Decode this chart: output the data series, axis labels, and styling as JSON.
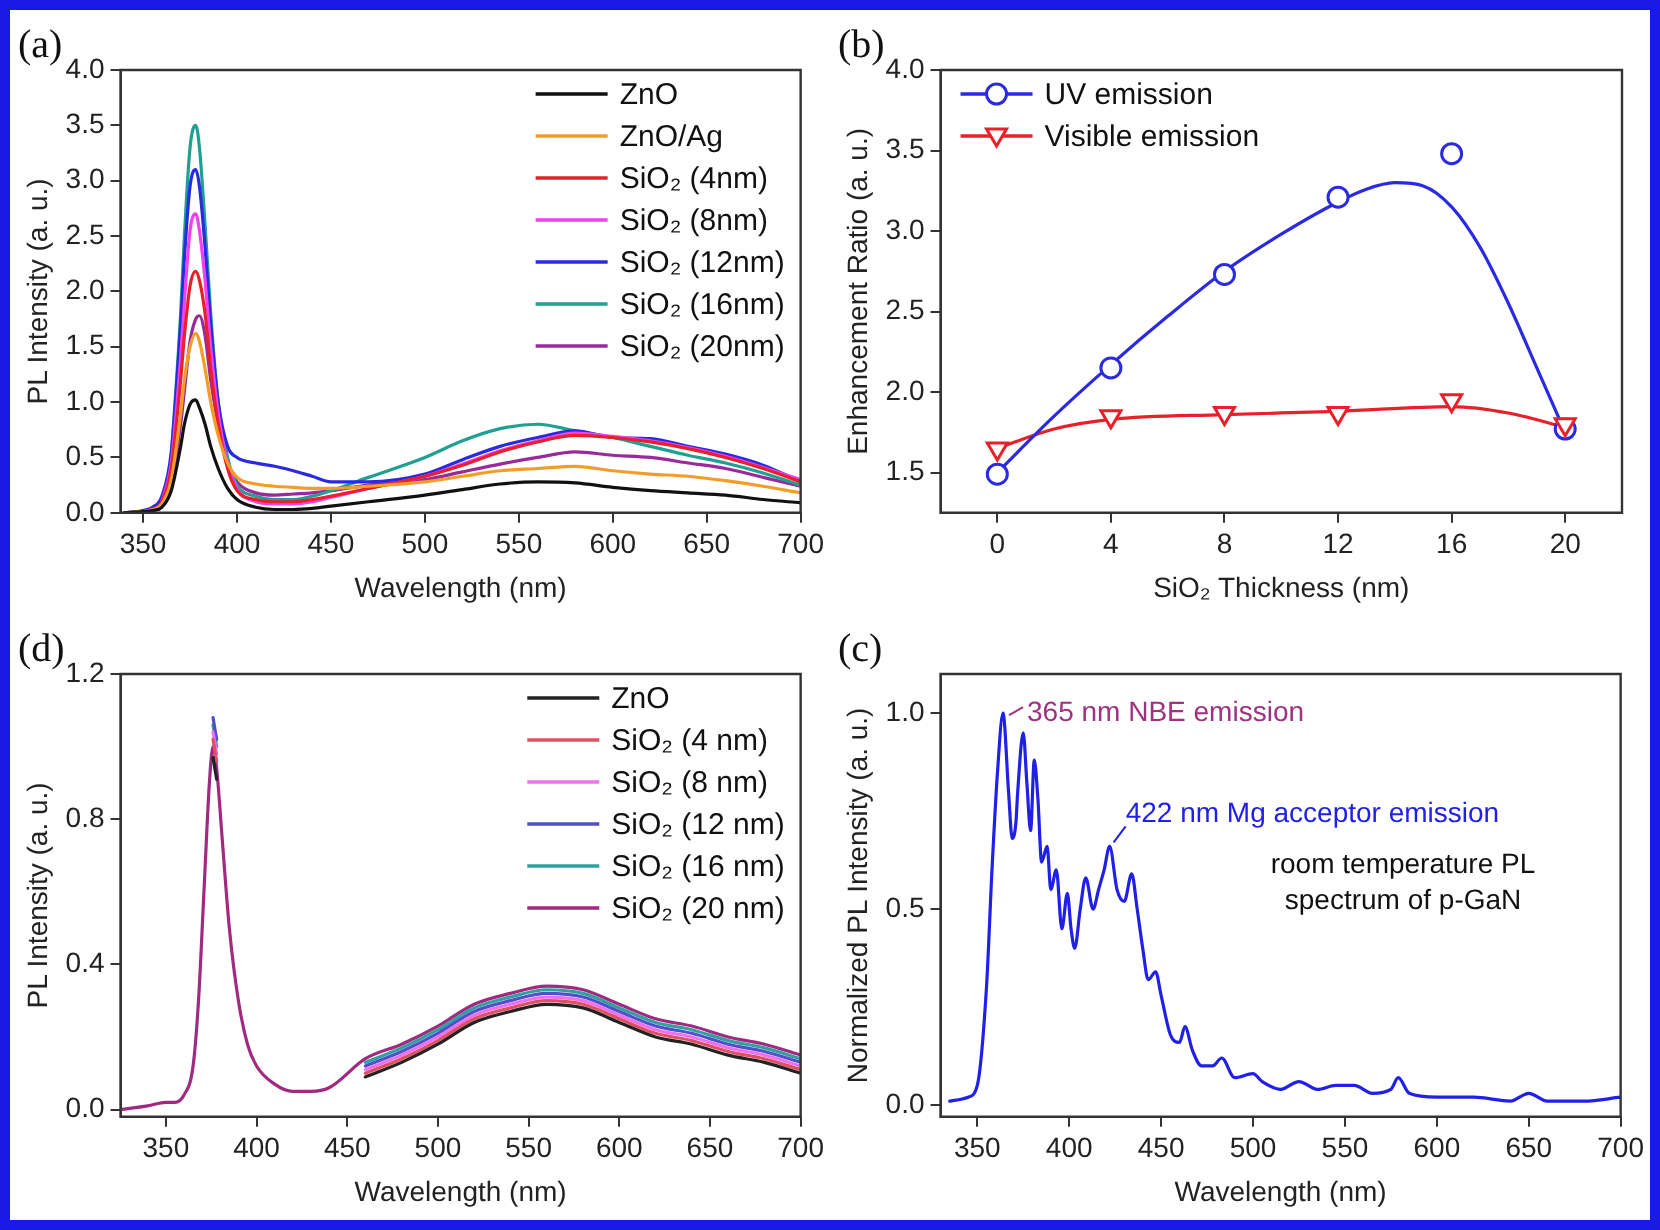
{
  "chart_data": [
    {
      "type": "line",
      "title": "(a)",
      "xlabel": "Wavelength (nm)",
      "ylabel": "PL Intensity (a. u.)",
      "legend": "top right",
      "xlim": [
        338,
        700
      ],
      "xticks": [
        350,
        400,
        450,
        500,
        550,
        600,
        650,
        700
      ],
      "ylim": [
        0,
        4
      ],
      "yticks": [
        {
          "value": 0,
          "label": "0.0"
        },
        {
          "value": 0.5,
          "label": "0.5"
        },
        {
          "value": 1,
          "label": "1.0"
        },
        {
          "value": 1.5,
          "label": "1.5"
        },
        {
          "value": 2,
          "label": "2.0"
        },
        {
          "value": 2.5,
          "label": "2.5"
        },
        {
          "value": 3,
          "label": "3.0"
        },
        {
          "value": 3.5,
          "label": "3.5"
        },
        {
          "value": 4,
          "label": "4.0"
        }
      ],
      "x": [
        340,
        350,
        355,
        360,
        365,
        370,
        372,
        375,
        378,
        380,
        383,
        386,
        390,
        395,
        400,
        410,
        420,
        430,
        440,
        450,
        470,
        500,
        520,
        540,
        560,
        580,
        600,
        620,
        640,
        660,
        680,
        700
      ],
      "series": [
        {
          "name": "ZnO",
          "color": "#111111",
          "values": [
            0,
            0.01,
            0.02,
            0.05,
            0.2,
            0.6,
            0.8,
            0.98,
            1.02,
            0.95,
            0.8,
            0.6,
            0.4,
            0.22,
            0.12,
            0.05,
            0.03,
            0.03,
            0.04,
            0.06,
            0.1,
            0.16,
            0.21,
            0.26,
            0.28,
            0.27,
            0.23,
            0.2,
            0.18,
            0.16,
            0.12,
            0.09
          ]
        },
        {
          "name": "ZnO/Ag",
          "color": "#f39c2a",
          "values": [
            0,
            0.01,
            0.03,
            0.08,
            0.3,
            0.9,
            1.2,
            1.5,
            1.62,
            1.55,
            1.3,
            1.0,
            0.7,
            0.45,
            0.32,
            0.26,
            0.24,
            0.23,
            0.22,
            0.22,
            0.24,
            0.28,
            0.33,
            0.38,
            0.4,
            0.42,
            0.38,
            0.35,
            0.33,
            0.29,
            0.24,
            0.18
          ]
        },
        {
          "name": "SiO₂ (4nm)",
          "color": "#e8202a",
          "values": [
            0,
            0.01,
            0.03,
            0.1,
            0.4,
            1.2,
            1.6,
            2.05,
            2.18,
            2.1,
            1.8,
            1.3,
            0.8,
            0.4,
            0.2,
            0.12,
            0.1,
            0.1,
            0.12,
            0.15,
            0.22,
            0.33,
            0.43,
            0.55,
            0.64,
            0.7,
            0.68,
            0.64,
            0.58,
            0.5,
            0.4,
            0.28
          ]
        },
        {
          "name": "SiO₂ (8nm)",
          "color": "#f040f0",
          "values": [
            null,
            null,
            null,
            0.1,
            0.45,
            1.4,
            1.9,
            2.55,
            2.7,
            2.55,
            2.1,
            1.5,
            0.9,
            0.45,
            0.22,
            0.1,
            0.08,
            0.08,
            0.1,
            0.14,
            0.22,
            0.33,
            0.44,
            0.56,
            0.65,
            0.72,
            0.69,
            0.65,
            0.59,
            0.51,
            0.41,
            0.3
          ]
        },
        {
          "name": "SiO₂ (12nm)",
          "color": "#2a2ae0",
          "values": [
            0,
            0.02,
            0.05,
            0.15,
            0.55,
            1.7,
            2.3,
            2.95,
            3.1,
            2.95,
            2.4,
            1.7,
            1.0,
            0.6,
            0.5,
            0.45,
            0.42,
            0.38,
            0.33,
            0.28,
            0.28,
            0.35,
            0.48,
            0.6,
            0.68,
            0.74,
            0.68,
            0.67,
            0.6,
            0.53,
            0.43,
            0.28
          ]
        },
        {
          "name": "SiO₂ (16nm)",
          "color": "#20a090",
          "values": [
            null,
            null,
            null,
            null,
            0.5,
            1.8,
            2.5,
            3.3,
            3.5,
            3.3,
            2.6,
            1.8,
            1.0,
            0.5,
            0.25,
            0.15,
            0.12,
            0.12,
            0.15,
            0.2,
            0.32,
            0.5,
            0.65,
            0.76,
            0.8,
            0.74,
            0.68,
            0.6,
            0.52,
            0.45,
            0.36,
            0.25
          ]
        },
        {
          "name": "SiO₂ (20nm)",
          "color": "#9a2a9a",
          "values": [
            0,
            0.01,
            0.02,
            0.06,
            0.25,
            0.8,
            1.1,
            1.55,
            1.75,
            1.78,
            1.6,
            1.2,
            0.8,
            0.45,
            0.28,
            0.18,
            0.16,
            0.17,
            0.18,
            0.2,
            0.25,
            0.3,
            0.37,
            0.44,
            0.5,
            0.55,
            0.52,
            0.5,
            0.45,
            0.4,
            0.32,
            0.24
          ]
        }
      ]
    },
    {
      "type": "scatter",
      "title": "(b)",
      "xlabel": "SiO₂ Thickness (nm)",
      "ylabel": "Enhancement Ratio (a. u.)",
      "legend": "top left",
      "xlim": [
        -2,
        22
      ],
      "xticks": [
        0,
        4,
        8,
        12,
        16,
        20
      ],
      "ylim": [
        1.25,
        4
      ],
      "yticks": [
        {
          "value": 1.5,
          "label": "1.5"
        },
        {
          "value": 2,
          "label": "2.0"
        },
        {
          "value": 2.5,
          "label": "2.5"
        },
        {
          "value": 3,
          "label": "3.0"
        },
        {
          "value": 3.5,
          "label": "3.5"
        },
        {
          "value": 4,
          "label": "4.0"
        }
      ],
      "x": [
        0,
        4,
        8,
        12,
        16,
        20
      ],
      "series": [
        {
          "name": "UV emission",
          "color": "#2a2ae0",
          "marker": "circle",
          "values": [
            1.49,
            2.15,
            2.73,
            3.21,
            3.48,
            1.77
          ]
        },
        {
          "name": "Visible emission",
          "color": "#e8202a",
          "marker": "triangle",
          "values": [
            1.64,
            1.84,
            1.86,
            1.86,
            1.94,
            1.79
          ]
        },
        {
          "type": "line",
          "color": "#2a2ae0",
          "x": [
            0,
            2,
            4,
            6,
            8,
            10,
            12,
            13,
            14,
            15,
            16,
            17,
            18,
            19,
            20
          ],
          "values": [
            1.5,
            1.85,
            2.17,
            2.47,
            2.75,
            2.98,
            3.18,
            3.26,
            3.3,
            3.28,
            3.15,
            2.9,
            2.55,
            2.15,
            1.75
          ]
        },
        {
          "type": "line",
          "color": "#e8202a",
          "x": [
            0,
            2,
            4,
            8,
            12,
            16,
            18,
            20
          ],
          "values": [
            1.65,
            1.77,
            1.83,
            1.86,
            1.88,
            1.91,
            1.87,
            1.78
          ]
        }
      ]
    },
    {
      "type": "line",
      "title": "(d)",
      "xlabel": "Wavelength (nm)",
      "ylabel": "PL Intensity (a. u.)",
      "legend": "top right",
      "xlim": [
        325,
        700
      ],
      "xticks": [
        350,
        400,
        450,
        500,
        550,
        600,
        650,
        700
      ],
      "ylim": [
        -0.02,
        1.2
      ],
      "yticks": [
        {
          "value": 0,
          "label": "0.0"
        },
        {
          "value": 0.4,
          "label": "0.4"
        },
        {
          "value": 0.8,
          "label": "0.8"
        },
        {
          "value": 1.2,
          "label": "1.2"
        }
      ],
      "x": [
        325,
        340,
        350,
        355,
        360,
        365,
        368,
        371,
        374,
        376,
        378,
        381,
        385,
        390,
        395,
        400,
        410,
        420,
        430,
        440,
        460,
        480,
        500,
        520,
        540,
        560,
        580,
        600,
        620,
        640,
        660,
        680,
        700
      ],
      "series": [
        {
          "name": "ZnO",
          "color": "#222222",
          "values": [
            null,
            null,
            null,
            null,
            null,
            null,
            null,
            null,
            null,
            0.97,
            0.91,
            null,
            null,
            null,
            null,
            null,
            null,
            null,
            null,
            null,
            0.09,
            0.13,
            0.18,
            0.24,
            0.27,
            0.29,
            0.28,
            0.24,
            0.2,
            0.18,
            0.15,
            0.13,
            0.1
          ]
        },
        {
          "name": "SiO₂ (4 nm)",
          "color": "#e05060",
          "values": [
            null,
            null,
            null,
            null,
            null,
            null,
            null,
            null,
            null,
            1.02,
            0.96,
            null,
            null,
            null,
            null,
            null,
            null,
            null,
            null,
            null,
            0.1,
            0.14,
            0.19,
            0.25,
            0.28,
            0.3,
            0.29,
            0.25,
            0.21,
            0.19,
            0.16,
            0.14,
            0.11
          ]
        },
        {
          "name": "SiO₂ (8 nm)",
          "color": "#f070f0",
          "values": [
            null,
            null,
            null,
            null,
            null,
            null,
            null,
            null,
            null,
            1.04,
            0.98,
            null,
            null,
            null,
            null,
            null,
            null,
            null,
            null,
            null,
            0.11,
            0.15,
            0.2,
            0.26,
            0.29,
            0.31,
            0.3,
            0.26,
            0.22,
            0.2,
            0.17,
            0.15,
            0.12
          ]
        },
        {
          "name": "SiO₂ (12 nm)",
          "color": "#5050c8",
          "values": [
            null,
            null,
            null,
            null,
            null,
            null,
            null,
            null,
            null,
            1.08,
            1.02,
            null,
            null,
            null,
            null,
            null,
            null,
            null,
            null,
            null,
            0.12,
            0.16,
            0.21,
            0.27,
            0.3,
            0.32,
            0.31,
            0.27,
            0.23,
            0.21,
            0.18,
            0.16,
            0.13
          ]
        },
        {
          "name": "SiO₂ (16 nm)",
          "color": "#30a0a0",
          "values": [
            null,
            null,
            null,
            null,
            null,
            null,
            null,
            null,
            null,
            1.06,
            1.0,
            null,
            null,
            null,
            null,
            null,
            null,
            null,
            null,
            null,
            0.13,
            0.17,
            0.22,
            0.28,
            0.31,
            0.33,
            0.32,
            0.28,
            0.24,
            0.22,
            0.19,
            0.17,
            0.14
          ]
        },
        {
          "name": "SiO₂ (20 nm)",
          "color": "#a02a80",
          "values": [
            0,
            0.01,
            0.02,
            0.02,
            0.04,
            0.12,
            0.3,
            0.6,
            0.9,
            1.0,
            0.94,
            0.75,
            0.5,
            0.3,
            0.18,
            0.12,
            0.07,
            0.05,
            0.05,
            0.06,
            0.14,
            0.18,
            0.23,
            0.29,
            0.32,
            0.34,
            0.33,
            0.29,
            0.25,
            0.23,
            0.2,
            0.18,
            0.15
          ]
        }
      ]
    },
    {
      "type": "line",
      "title": "(c)",
      "xlabel": "Wavelength (nm)",
      "ylabel": "Normalized PL Intensity (a. u.)",
      "xlim": [
        330,
        700
      ],
      "xticks": [
        350,
        400,
        450,
        500,
        550,
        600,
        650,
        700
      ],
      "ylim": [
        -0.03,
        1.1
      ],
      "yticks": [
        {
          "value": 0,
          "label": "0.0"
        },
        {
          "value": 0.5,
          "label": "0.5"
        },
        {
          "value": 1,
          "label": "1.0"
        }
      ],
      "annotations": [
        {
          "text": "365 nm NBE emission",
          "x": 364,
          "y": 1.0
        },
        {
          "text": "422 nm Mg acceptor emission",
          "x": 422,
          "y": 0.66
        },
        "room temperature PL spectrum of p-GaN"
      ],
      "x": [
        335,
        345,
        350,
        355,
        358,
        361,
        364,
        367,
        369,
        371,
        372,
        375,
        377,
        379,
        381,
        383,
        385,
        388,
        390,
        393,
        396,
        399,
        401,
        403,
        406,
        409,
        413,
        416,
        419,
        422,
        426,
        430,
        434,
        437,
        440,
        443,
        447,
        450,
        455,
        460,
        463,
        467,
        472,
        478,
        483,
        490,
        500,
        505,
        515,
        525,
        535,
        545,
        555,
        565,
        575,
        579,
        585,
        600,
        620,
        640,
        650,
        660,
        680,
        700
      ],
      "series": [
        {
          "color": "#2020e8",
          "values": [
            0.01,
            0.02,
            0.05,
            0.3,
            0.6,
            0.85,
            1.0,
            0.8,
            0.68,
            0.72,
            0.8,
            0.95,
            0.82,
            0.7,
            0.88,
            0.78,
            0.62,
            0.66,
            0.55,
            0.6,
            0.45,
            0.54,
            0.45,
            0.4,
            0.5,
            0.58,
            0.5,
            0.55,
            0.6,
            0.66,
            0.55,
            0.52,
            0.59,
            0.5,
            0.4,
            0.32,
            0.34,
            0.28,
            0.18,
            0.16,
            0.2,
            0.14,
            0.1,
            0.1,
            0.12,
            0.07,
            0.08,
            0.06,
            0.04,
            0.06,
            0.04,
            0.05,
            0.05,
            0.03,
            0.04,
            0.07,
            0.03,
            0.02,
            0.02,
            0.01,
            0.03,
            0.01,
            0.01,
            0.02
          ]
        }
      ]
    }
  ]
}
